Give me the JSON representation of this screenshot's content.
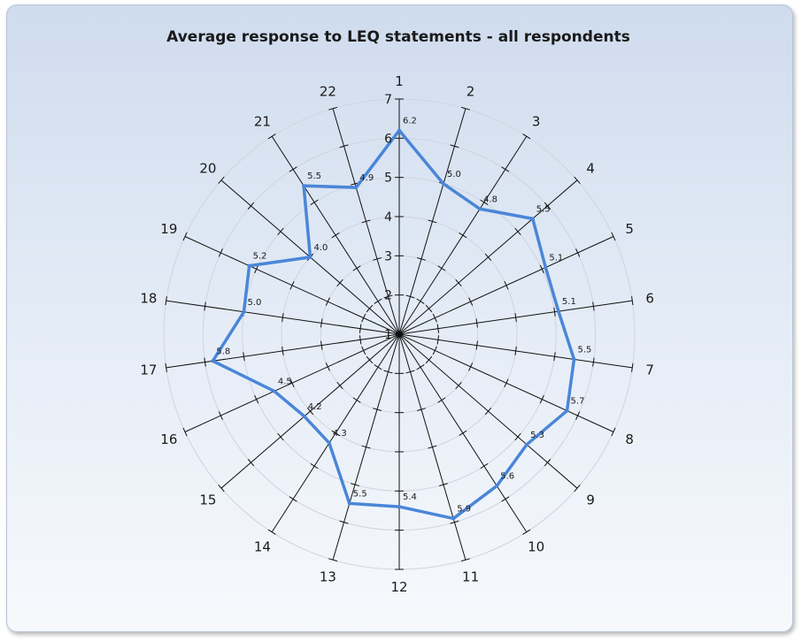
{
  "chart_data": {
    "type": "radar",
    "title": "Average response to LEQ statements - all respondents",
    "categories": [
      "1",
      "2",
      "3",
      "4",
      "5",
      "6",
      "7",
      "8",
      "9",
      "10",
      "11",
      "12",
      "13",
      "14",
      "15",
      "16",
      "17",
      "18",
      "19",
      "20",
      "21",
      "22"
    ],
    "series": [
      {
        "values": [
          6.2,
          5.0,
          4.8,
          5.5,
          5.1,
          5.1,
          5.5,
          5.7,
          5.3,
          5.6,
          5.9,
          5.4,
          5.5,
          4.3,
          4.2,
          4.5,
          5.8,
          5.0,
          5.2,
          4.0,
          5.5,
          4.9
        ],
        "color": "#4a86d8"
      }
    ],
    "rlim": [
      1,
      7
    ],
    "radial_ticks": [
      "1",
      "2",
      "3",
      "4",
      "5",
      "6",
      "7"
    ],
    "data_labels": [
      "6.2",
      "5.0",
      "4.8",
      "5.5",
      "5.1",
      "5.1",
      "5.5",
      "5.7",
      "5.3",
      "5.6",
      "5.9",
      "5.4",
      "5.5",
      "4.3",
      "4.2",
      "4.5",
      "5.8",
      "5.0",
      "5.2",
      "4.0",
      "5.5",
      "4.9"
    ],
    "grid": true
  }
}
